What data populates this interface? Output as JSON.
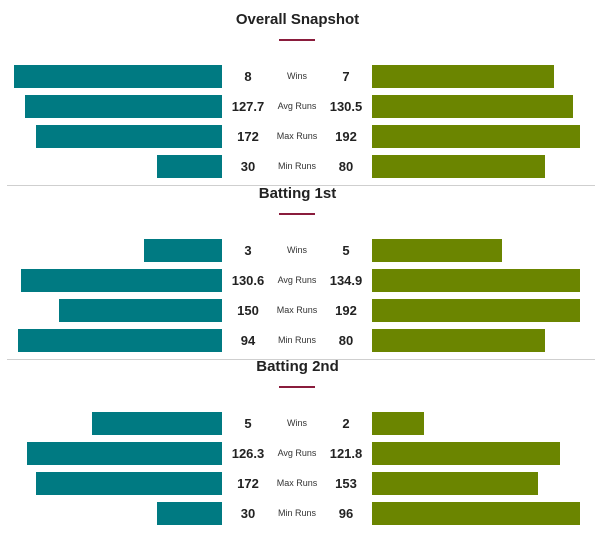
{
  "colors": {
    "left_team": "#007a82",
    "right_team": "#6b8500",
    "accent": "#8a1c3c"
  },
  "chart_data": [
    {
      "type": "bar",
      "title": "Overall Snapshot",
      "categories": [
        "Wins",
        "Avg Runs",
        "Max Runs",
        "Min Runs"
      ],
      "series": [
        {
          "values": [
            8,
            127.7,
            172,
            30
          ]
        },
        {
          "values": [
            7,
            130.5,
            192,
            80
          ]
        }
      ]
    },
    {
      "type": "bar",
      "title": "Batting 1st",
      "categories": [
        "Wins",
        "Avg Runs",
        "Max Runs",
        "Min Runs"
      ],
      "series": [
        {
          "values": [
            3,
            130.6,
            150,
            94
          ]
        },
        {
          "values": [
            5,
            134.9,
            192,
            80
          ]
        }
      ]
    },
    {
      "type": "bar",
      "title": "Batting 2nd",
      "categories": [
        "Wins",
        "Avg Runs",
        "Max Runs",
        "Min Runs"
      ],
      "series": [
        {
          "values": [
            5,
            126.3,
            172,
            30
          ]
        },
        {
          "values": [
            2,
            121.8,
            153,
            96
          ]
        }
      ]
    }
  ]
}
